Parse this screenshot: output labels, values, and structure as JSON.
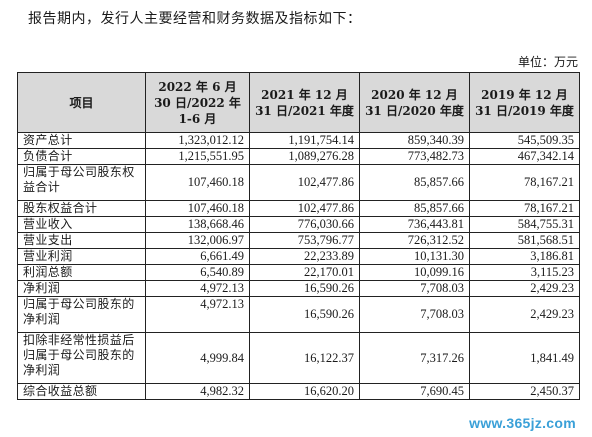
{
  "intro": "报告期内，发行人主要经营和财务数据及指标如下：",
  "unit": "单位：万元",
  "table": {
    "headers": [
      "项目",
      "2022 年 6 月 30 日/2022 年 1-6 月",
      "2021 年 12 月 31 日/2021 年度",
      "2020 年 12 月 31 日/2020 年度",
      "2019 年 12 月 31 日/2019 年度"
    ],
    "rows": [
      {
        "label": "资产总计",
        "values": [
          "1,323,012.12",
          "1,191,754.14",
          "859,340.39",
          "545,509.35"
        ]
      },
      {
        "label": "负债合计",
        "values": [
          "1,215,551.95",
          "1,089,276.28",
          "773,482.73",
          "467,342.14"
        ]
      },
      {
        "label": "归属于母公司股东权益合计",
        "values": [
          "107,460.18",
          "102,477.86",
          "85,857.66",
          "78,167.21"
        ]
      },
      {
        "label": "股东权益合计",
        "values": [
          "107,460.18",
          "102,477.86",
          "85,857.66",
          "78,167.21"
        ]
      },
      {
        "label": "营业收入",
        "values": [
          "138,668.46",
          "776,030.66",
          "736,443.81",
          "584,755.31"
        ]
      },
      {
        "label": "营业支出",
        "values": [
          "132,006.97",
          "753,796.77",
          "726,312.52",
          "581,568.51"
        ]
      },
      {
        "label": "营业利润",
        "values": [
          "6,661.49",
          "22,233.89",
          "10,131.30",
          "3,186.81"
        ]
      },
      {
        "label": "利润总额",
        "values": [
          "6,540.89",
          "22,170.01",
          "10,099.16",
          "3,115.23"
        ]
      },
      {
        "label": "净利润",
        "values": [
          "4,972.13",
          "16,590.26",
          "7,708.03",
          "2,429.23"
        ]
      },
      {
        "label": "归属于母公司股东的净利润",
        "values": [
          "4,972.13",
          "16,590.26",
          "7,708.03",
          "2,429.23"
        ]
      },
      {
        "label": "扣除非经常性损益后归属于母公司股东的净利润",
        "values": [
          "4,999.84",
          "16,122.37",
          "7,317.26",
          "1,841.49"
        ]
      },
      {
        "label": "综合收益总额",
        "values": [
          "4,982.32",
          "16,620.20",
          "7,690.45",
          "2,450.37"
        ]
      }
    ]
  },
  "watermark": "www.365jz.com"
}
